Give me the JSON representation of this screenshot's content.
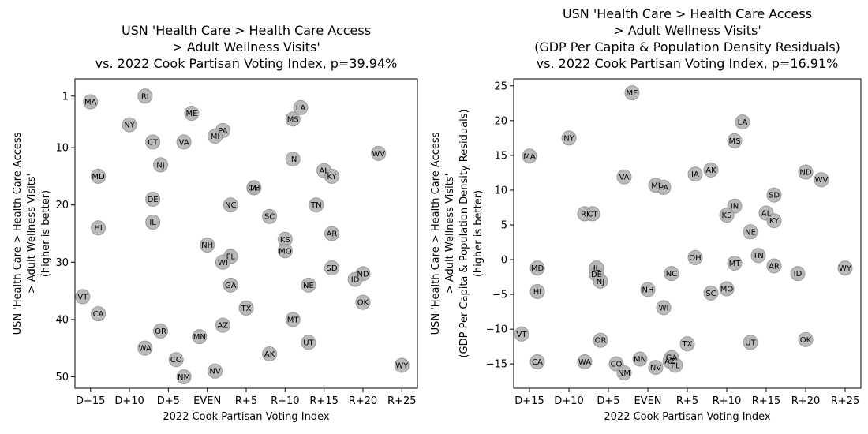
{
  "chart_data": [
    {
      "type": "scatter",
      "title": [
        "USN 'Health Care > Health Care Access",
        "> Adult Wellness Visits'",
        "vs. 2022 Cook Partisan Voting Index, p=39.94%"
      ],
      "xlabel": "2022 Cook Partisan Voting Index",
      "ylabel": [
        "USN 'Health Care > Health Care Access",
        "> Adult Wellness Visits'",
        "(higher is better)"
      ],
      "xlim": [
        -17,
        27
      ],
      "ylim": [
        52,
        -2
      ],
      "y_inverted": true,
      "xticks": [
        {
          "value": -15,
          "label": "D+15"
        },
        {
          "value": -10,
          "label": "D+10"
        },
        {
          "value": -5,
          "label": "D+5"
        },
        {
          "value": 0,
          "label": "EVEN"
        },
        {
          "value": 5,
          "label": "R+5"
        },
        {
          "value": 10,
          "label": "R+10"
        },
        {
          "value": 15,
          "label": "R+15"
        },
        {
          "value": 20,
          "label": "R+20"
        },
        {
          "value": 25,
          "label": "R+25"
        }
      ],
      "yticks": [
        {
          "value": 1,
          "label": "1"
        },
        {
          "value": 10,
          "label": "10"
        },
        {
          "value": 20,
          "label": "20"
        },
        {
          "value": 30,
          "label": "30"
        },
        {
          "value": 40,
          "label": "40"
        },
        {
          "value": 50,
          "label": "50"
        }
      ],
      "marker_color": "#b3b3b3",
      "points": [
        {
          "label": "MA",
          "x": -15,
          "y": 2
        },
        {
          "label": "RI",
          "x": -8,
          "y": 1
        },
        {
          "label": "ME",
          "x": -2,
          "y": 4
        },
        {
          "label": "LA",
          "x": 12,
          "y": 3
        },
        {
          "label": "NY",
          "x": -10,
          "y": 6
        },
        {
          "label": "MS",
          "x": 11,
          "y": 5
        },
        {
          "label": "PA",
          "x": 2,
          "y": 7
        },
        {
          "label": "MI",
          "x": 1,
          "y": 8
        },
        {
          "label": "CT",
          "x": -7,
          "y": 9
        },
        {
          "label": "VA",
          "x": -3,
          "y": 9
        },
        {
          "label": "WV",
          "x": 22,
          "y": 11
        },
        {
          "label": "NJ",
          "x": -6,
          "y": 13
        },
        {
          "label": "IN",
          "x": 11,
          "y": 12
        },
        {
          "label": "AL",
          "x": 15,
          "y": 14
        },
        {
          "label": "MD",
          "x": -14,
          "y": 15
        },
        {
          "label": "KY",
          "x": 16,
          "y": 15
        },
        {
          "label": "OH",
          "x": 6,
          "y": 17
        },
        {
          "label": "IA",
          "x": 6,
          "y": 17
        },
        {
          "label": "DE",
          "x": -7,
          "y": 19
        },
        {
          "label": "NC",
          "x": 3,
          "y": 20
        },
        {
          "label": "TN",
          "x": 14,
          "y": 20
        },
        {
          "label": "SC",
          "x": 8,
          "y": 22
        },
        {
          "label": "IL",
          "x": -7,
          "y": 23
        },
        {
          "label": "HI",
          "x": -14,
          "y": 24
        },
        {
          "label": "AR",
          "x": 16,
          "y": 25
        },
        {
          "label": "KS",
          "x": 10,
          "y": 26
        },
        {
          "label": "NH",
          "x": 0,
          "y": 27
        },
        {
          "label": "MO",
          "x": 10,
          "y": 28
        },
        {
          "label": "FL",
          "x": 3,
          "y": 29
        },
        {
          "label": "WI",
          "x": 2,
          "y": 30
        },
        {
          "label": "SD",
          "x": 16,
          "y": 31
        },
        {
          "label": "ND",
          "x": 20,
          "y": 32
        },
        {
          "label": "ID",
          "x": 19,
          "y": 33
        },
        {
          "label": "GA",
          "x": 3,
          "y": 34
        },
        {
          "label": "NE",
          "x": 13,
          "y": 34
        },
        {
          "label": "VT",
          "x": -16,
          "y": 36
        },
        {
          "label": "OK",
          "x": 20,
          "y": 37
        },
        {
          "label": "TX",
          "x": 5,
          "y": 38
        },
        {
          "label": "CA",
          "x": -14,
          "y": 39
        },
        {
          "label": "MT",
          "x": 11,
          "y": 40
        },
        {
          "label": "AZ",
          "x": 2,
          "y": 41
        },
        {
          "label": "OR",
          "x": -6,
          "y": 42
        },
        {
          "label": "MN",
          "x": -1,
          "y": 43
        },
        {
          "label": "UT",
          "x": 13,
          "y": 44
        },
        {
          "label": "WA",
          "x": -8,
          "y": 45
        },
        {
          "label": "AK",
          "x": 8,
          "y": 46
        },
        {
          "label": "CO",
          "x": -4,
          "y": 47
        },
        {
          "label": "WY",
          "x": 25,
          "y": 48
        },
        {
          "label": "NV",
          "x": 1,
          "y": 49
        },
        {
          "label": "NM",
          "x": -3,
          "y": 50
        }
      ]
    },
    {
      "type": "scatter",
      "title": [
        "USN 'Health Care > Health Care Access",
        "> Adult Wellness Visits'",
        "(GDP Per Capita & Population Density Residuals)",
        "vs. 2022 Cook Partisan Voting Index, p=16.91%"
      ],
      "xlabel": "2022 Cook Partisan Voting Index",
      "ylabel": [
        "USN 'Health Care > Health Care Access",
        "> Adult Wellness Visits'",
        "(GDP Per Capita & Population Density Residuals)",
        "(higher is better)"
      ],
      "xlim": [
        -17,
        27
      ],
      "ylim": [
        -18.5,
        26
      ],
      "y_inverted": false,
      "xticks": [
        {
          "value": -15,
          "label": "D+15"
        },
        {
          "value": -10,
          "label": "D+10"
        },
        {
          "value": -5,
          "label": "D+5"
        },
        {
          "value": 0,
          "label": "EVEN"
        },
        {
          "value": 5,
          "label": "R+5"
        },
        {
          "value": 10,
          "label": "R+10"
        },
        {
          "value": 15,
          "label": "R+15"
        },
        {
          "value": 20,
          "label": "R+20"
        },
        {
          "value": 25,
          "label": "R+25"
        }
      ],
      "yticks": [
        {
          "value": -15,
          "label": "−15"
        },
        {
          "value": -10,
          "label": "−10"
        },
        {
          "value": -5,
          "label": "−5"
        },
        {
          "value": 0,
          "label": "0"
        },
        {
          "value": 5,
          "label": "5"
        },
        {
          "value": 10,
          "label": "10"
        },
        {
          "value": 15,
          "label": "15"
        },
        {
          "value": 20,
          "label": "20"
        },
        {
          "value": 25,
          "label": "25"
        }
      ],
      "marker_color": "#b3b3b3",
      "points": [
        {
          "label": "ME",
          "x": -2,
          "y": 24
        },
        {
          "label": "LA",
          "x": 12,
          "y": 19.8
        },
        {
          "label": "NY",
          "x": -10,
          "y": 17.5
        },
        {
          "label": "MS",
          "x": 11,
          "y": 17.1
        },
        {
          "label": "MA",
          "x": -15,
          "y": 14.9
        },
        {
          "label": "AK",
          "x": 8,
          "y": 12.9
        },
        {
          "label": "ND",
          "x": 20,
          "y": 12.6
        },
        {
          "label": "IA",
          "x": 6,
          "y": 12.3
        },
        {
          "label": "VA",
          "x": -3,
          "y": 11.9
        },
        {
          "label": "WV",
          "x": 22,
          "y": 11.5
        },
        {
          "label": "MI",
          "x": 1,
          "y": 10.7
        },
        {
          "label": "PA",
          "x": 2,
          "y": 10.4
        },
        {
          "label": "SD",
          "x": 16,
          "y": 9.3
        },
        {
          "label": "IN",
          "x": 11,
          "y": 7.7
        },
        {
          "label": "AL",
          "x": 15,
          "y": 6.7
        },
        {
          "label": "RI",
          "x": -8,
          "y": 6.6
        },
        {
          "label": "CT",
          "x": -7,
          "y": 6.6
        },
        {
          "label": "KS",
          "x": 10,
          "y": 6.4
        },
        {
          "label": "KY",
          "x": 16,
          "y": 5.6
        },
        {
          "label": "NE",
          "x": 13,
          "y": 4
        },
        {
          "label": "TN",
          "x": 14,
          "y": 0.6
        },
        {
          "label": "OH",
          "x": 6,
          "y": 0.3
        },
        {
          "label": "MT",
          "x": 11,
          "y": -0.5
        },
        {
          "label": "AR",
          "x": 16,
          "y": -0.9
        },
        {
          "label": "MD",
          "x": -14,
          "y": -1.2
        },
        {
          "label": "WY",
          "x": 25,
          "y": -1.2
        },
        {
          "label": "IL",
          "x": -6.5,
          "y": -1.2
        },
        {
          "label": "DE",
          "x": -6.5,
          "y": -2.1
        },
        {
          "label": "NC",
          "x": 3,
          "y": -2
        },
        {
          "label": "ID",
          "x": 19,
          "y": -2
        },
        {
          "label": "NJ",
          "x": -6,
          "y": -3.1
        },
        {
          "label": "MO",
          "x": 10,
          "y": -4.2
        },
        {
          "label": "NH",
          "x": 0,
          "y": -4.3
        },
        {
          "label": "HI",
          "x": -14,
          "y": -4.6
        },
        {
          "label": "SC",
          "x": 8,
          "y": -4.8
        },
        {
          "label": "WI",
          "x": 2,
          "y": -6.9
        },
        {
          "label": "VT",
          "x": -16,
          "y": -10.7
        },
        {
          "label": "OK",
          "x": 20,
          "y": -11.5
        },
        {
          "label": "OR",
          "x": -6,
          "y": -11.6
        },
        {
          "label": "UT",
          "x": 13,
          "y": -11.9
        },
        {
          "label": "TX",
          "x": 5,
          "y": -12.1
        },
        {
          "label": "GA",
          "x": 3,
          "y": -14.1
        },
        {
          "label": "MN",
          "x": -1,
          "y": -14.3
        },
        {
          "label": "AZ",
          "x": 2.8,
          "y": -14.6
        },
        {
          "label": "CA",
          "x": -14,
          "y": -14.7
        },
        {
          "label": "WA",
          "x": -8,
          "y": -14.7
        },
        {
          "label": "CO",
          "x": -4,
          "y": -15
        },
        {
          "label": "FL",
          "x": 3.5,
          "y": -15.2
        },
        {
          "label": "NV",
          "x": 1,
          "y": -15.5
        },
        {
          "label": "NM",
          "x": -3,
          "y": -16.3
        }
      ]
    }
  ]
}
